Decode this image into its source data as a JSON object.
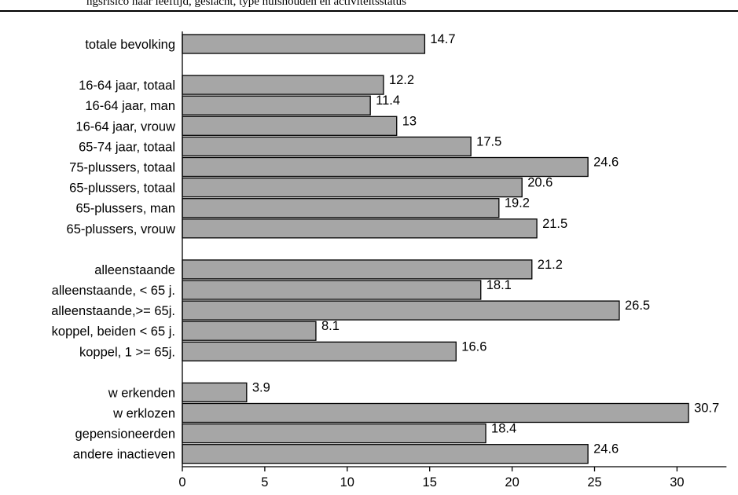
{
  "header": {
    "text": "ngsrisico naar leeftijd, geslacht, type huishouden en activiteitsstatus"
  },
  "chart_data": {
    "type": "bar",
    "orientation": "horizontal",
    "title": "",
    "xlabel": "",
    "ylabel": "",
    "xlim": [
      0,
      33
    ],
    "xticks": [
      0,
      5,
      10,
      15,
      20,
      25,
      30
    ],
    "grid": false,
    "bar_color": "#a6a6a6",
    "groups": [
      {
        "items": [
          {
            "label": "totale bevolking",
            "value": 14.7,
            "value_label": "14.7"
          }
        ]
      },
      {
        "items": [
          {
            "label": "16-64 jaar, totaal",
            "value": 12.2,
            "value_label": "12.2"
          },
          {
            "label": "16-64 jaar, man",
            "value": 11.4,
            "value_label": "11.4"
          },
          {
            "label": "16-64 jaar, vrouw",
            "value": 13,
            "value_label": "13"
          },
          {
            "label": "65-74 jaar, totaal",
            "value": 17.5,
            "value_label": "17.5"
          },
          {
            "label": "75-plussers, totaal",
            "value": 24.6,
            "value_label": "24.6"
          },
          {
            "label": "65-plussers, totaal",
            "value": 20.6,
            "value_label": "20.6"
          },
          {
            "label": "65-plussers, man",
            "value": 19.2,
            "value_label": "19.2"
          },
          {
            "label": "65-plussers, vrouw",
            "value": 21.5,
            "value_label": "21.5"
          }
        ]
      },
      {
        "items": [
          {
            "label": "alleenstaande",
            "value": 21.2,
            "value_label": "21.2"
          },
          {
            "label": "alleenstaande, < 65 j.",
            "value": 18.1,
            "value_label": "18.1"
          },
          {
            "label": "alleenstaande,>= 65j.",
            "value": 26.5,
            "value_label": "26.5"
          },
          {
            "label": "koppel, beiden < 65 j.",
            "value": 8.1,
            "value_label": "8.1"
          },
          {
            "label": "koppel, 1 >= 65j.",
            "value": 16.6,
            "value_label": "16.6"
          }
        ]
      },
      {
        "items": [
          {
            "label": "w erkenden",
            "value": 3.9,
            "value_label": "3.9"
          },
          {
            "label": "w erklozen",
            "value": 30.7,
            "value_label": "30.7"
          },
          {
            "label": "gepensioneerden",
            "value": 18.4,
            "value_label": "18.4"
          },
          {
            "label": "andere inactieven",
            "value": 24.6,
            "value_label": "24.6"
          }
        ]
      }
    ]
  }
}
